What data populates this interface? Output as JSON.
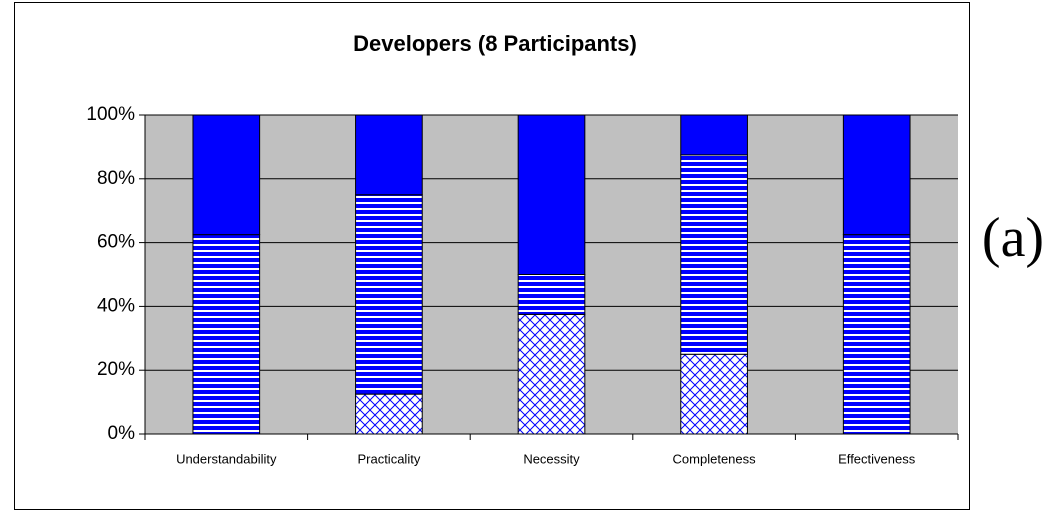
{
  "chart_data": {
    "type": "stacked-bar",
    "title": "Developers (8 Participants)",
    "annotations": [
      "(a)"
    ],
    "categories": [
      "Understandability",
      "Practicality",
      "Necessity",
      "Completeness",
      "Effectiveness"
    ],
    "series": [
      {
        "color": "#0000ff",
        "pattern": "crosshatch",
        "values": [
          0,
          12.5,
          37.5,
          25,
          0
        ]
      },
      {
        "color": "#0000ff",
        "pattern": "hstripe",
        "values": [
          62.5,
          62.5,
          12.5,
          62.5,
          62.5
        ]
      },
      {
        "color": "#0000ff",
        "pattern": "solid",
        "values": [
          37.5,
          25,
          50,
          12.5,
          37.5
        ]
      }
    ],
    "ylim": [
      0,
      100
    ],
    "yticks": [
      {
        "value": 0,
        "label": "0%"
      },
      {
        "value": 20,
        "label": "20%"
      },
      {
        "value": 40,
        "label": "40%"
      },
      {
        "value": 60,
        "label": "60%"
      },
      {
        "value": 80,
        "label": "80%"
      },
      {
        "value": 100,
        "label": "100%"
      }
    ],
    "grid": true,
    "plot_background": "#c0c0c0"
  }
}
